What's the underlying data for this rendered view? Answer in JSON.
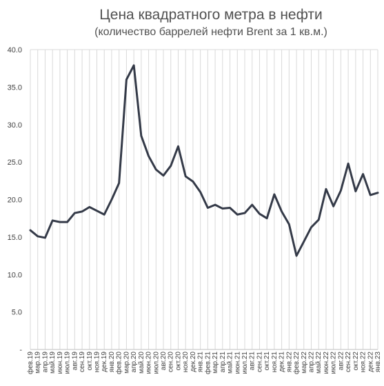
{
  "chart_data": {
    "type": "line",
    "title": "Цена квадратного метра в нефти",
    "subtitle": "(количество баррелей нефти Brent за 1 кв.м.)",
    "xlabel": "",
    "ylabel": "",
    "ylim": [
      0,
      40
    ],
    "grid": "vertical",
    "line_color": "#343a48",
    "y_ticks": [
      "-",
      "5.0",
      "10.0",
      "15.0",
      "20.0",
      "25.0",
      "30.0",
      "35.0",
      "40.0"
    ],
    "categories": [
      "фев.19",
      "мар.19",
      "апр.19",
      "май.19",
      "июн.19",
      "июл.19",
      "авг.19",
      "сен.19",
      "окт.19",
      "ноя.19",
      "дек.19",
      "янв.20",
      "фев.20",
      "мар.20",
      "апр.20",
      "май.20",
      "июн.20",
      "июл.20",
      "авг.20",
      "сен.20",
      "окт.20",
      "ноя.20",
      "дек.20",
      "янв.21",
      "фев.21",
      "мар.21",
      "апр.21",
      "май.21",
      "июн.21",
      "июл.21",
      "авг.21",
      "сен.21",
      "окт.21",
      "ноя.21",
      "дек.21",
      "янв.22",
      "фев.22",
      "мар.22",
      "апр.22",
      "май.22",
      "июн.22",
      "июл.22",
      "авг.22",
      "сен.22",
      "окт.22",
      "ноя.22",
      "дек.22",
      "янв.23"
    ],
    "values": [
      15.9,
      15.1,
      14.9,
      17.2,
      17.0,
      17.0,
      18.2,
      18.4,
      19.0,
      18.5,
      18.0,
      20.0,
      22.2,
      36.0,
      37.9,
      28.5,
      25.8,
      24.0,
      23.2,
      24.5,
      27.1,
      23.1,
      22.4,
      21.0,
      18.9,
      19.3,
      18.8,
      18.9,
      18.0,
      18.2,
      19.3,
      18.1,
      17.5,
      20.7,
      18.4,
      16.7,
      12.5,
      14.4,
      16.3,
      17.3,
      21.4,
      19.1,
      21.2,
      24.8,
      21.1,
      23.4,
      20.6,
      20.9
    ]
  }
}
